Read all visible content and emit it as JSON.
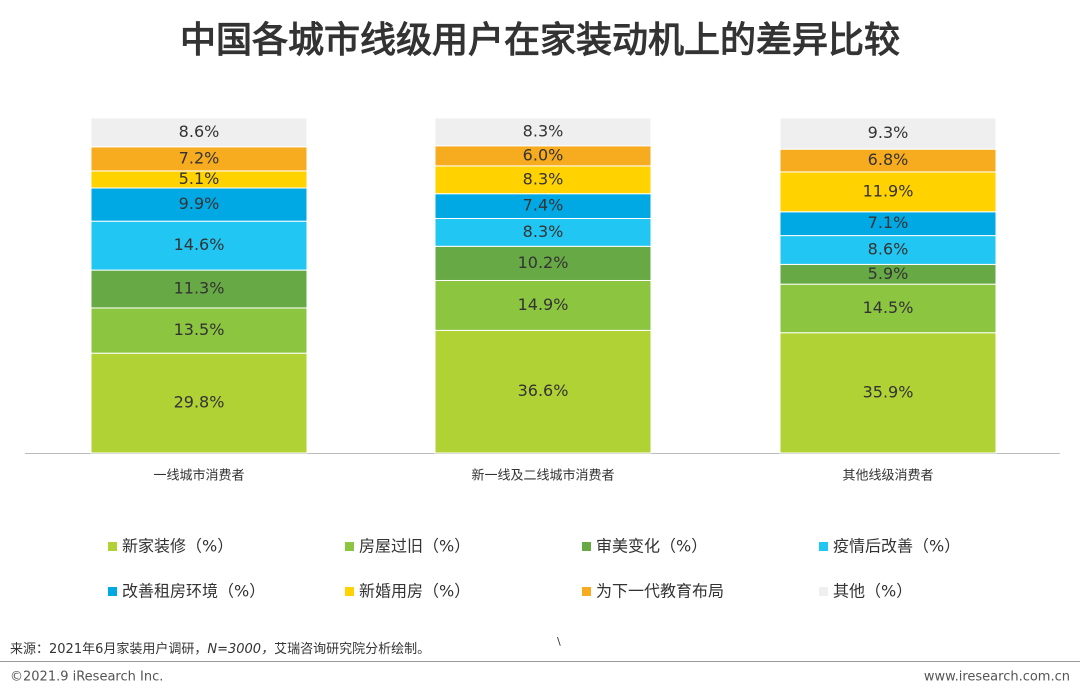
{
  "chart_data": {
    "type": "stacked_bar",
    "title": "中国各城市线级用户在家装动机上的差异比较",
    "categories": [
      "一线城市消费者",
      "新一线及二线城市消费者",
      "其他线级消费者"
    ],
    "series": [
      {
        "name": "新家装修（%）",
        "color": "#b1d234",
        "values": [
          29.8,
          36.6,
          35.9
        ],
        "value_labels": [
          "29.8%",
          "36.6%",
          "35.9%"
        ]
      },
      {
        "name": "房屋过旧（%）",
        "color": "#8cc540",
        "values": [
          13.5,
          14.9,
          14.5
        ],
        "value_labels": [
          "13.5%",
          "14.9%",
          "14.5%"
        ]
      },
      {
        "name": "审美变化（%）",
        "color": "#67a944",
        "values": [
          11.3,
          10.2,
          5.9
        ],
        "value_labels": [
          "11.3%",
          "10.2%",
          "5.9%"
        ]
      },
      {
        "name": "疫情后改善（%）",
        "color": "#22c6f2",
        "values": [
          14.6,
          8.3,
          8.6
        ],
        "value_labels": [
          "14.6%",
          "8.3%",
          "8.6%"
        ]
      },
      {
        "name": "改善租房环境（%）",
        "color": "#00a9e4",
        "values": [
          9.9,
          7.4,
          7.1
        ],
        "value_labels": [
          "9.9%",
          "7.4%",
          "7.1%"
        ]
      },
      {
        "name": "新婚用房（%）",
        "color": "#ffd200",
        "values": [
          5.1,
          8.3,
          11.9
        ],
        "value_labels": [
          "5.1%",
          "8.3%",
          "11.9%"
        ]
      },
      {
        "name": "为下一代教育布局",
        "color": "#f7ab1f",
        "values": [
          7.2,
          6.0,
          6.8
        ],
        "value_labels": [
          "7.2%",
          "6.0%",
          "6.8%"
        ]
      },
      {
        "name": "其他（%）",
        "color": "#efefef",
        "values": [
          8.6,
          8.3,
          9.3
        ],
        "value_labels": [
          "8.6%",
          "8.3%",
          "9.3%"
        ]
      }
    ]
  },
  "footer": {
    "source": [
      "来源：2021年6月家装用户调研，",
      "N=3000，",
      "艾瑞咨询研究院分析绘制。"
    ],
    "mark": "\\",
    "copyright": "©2021.9 iResearch Inc.",
    "website": "www.iresearch.com.cn"
  }
}
